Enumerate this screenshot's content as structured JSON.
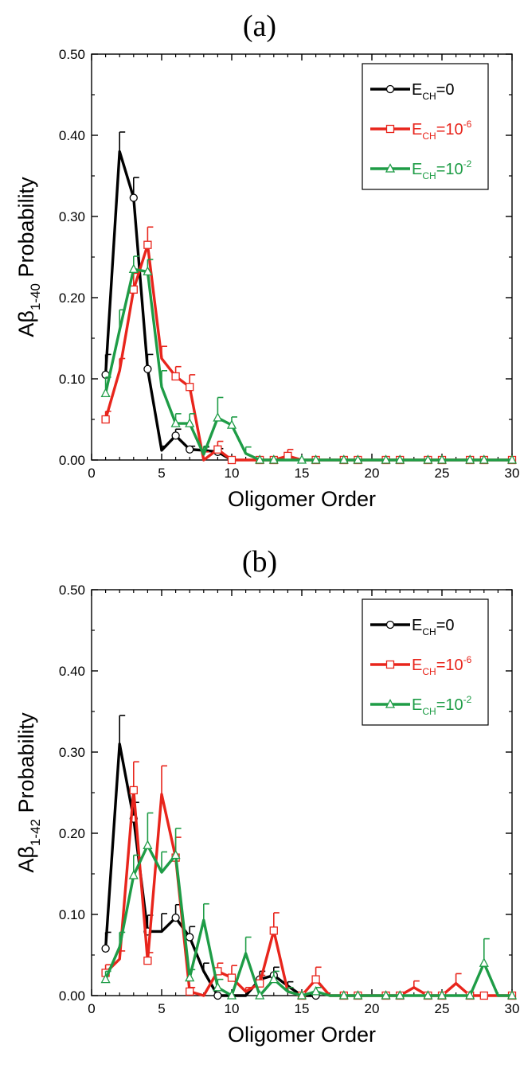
{
  "chart_data": [
    {
      "type": "line",
      "panel_label": "(a)",
      "xlabel": "Oligomer Order",
      "ylabel_main": "Aβ",
      "ylabel_sub": "1-40",
      "ylabel_tail": " Probability",
      "xlim": [
        0,
        30
      ],
      "ylim": [
        0,
        0.5
      ],
      "x_ticks": [
        0,
        5,
        10,
        15,
        20,
        25,
        30
      ],
      "y_ticks": [
        "0.00",
        "0.10",
        "0.20",
        "0.30",
        "0.40",
        "0.50"
      ],
      "legend_position": "top-right",
      "series": [
        {
          "name": "E_CH=0",
          "label_main": "E",
          "label_sub": "CH",
          "label_tail": "=0",
          "label_sup": "",
          "color": "#000000",
          "marker": "circle",
          "x": [
            1,
            2,
            3,
            4,
            5,
            6,
            7,
            8,
            9,
            10
          ],
          "y": [
            0.105,
            0.38,
            0.323,
            0.112,
            0.012,
            0.03,
            0.013,
            0.012,
            0.01,
            0.0
          ],
          "err": [
            0.025,
            0.024,
            0.025,
            0.018,
            0.005,
            0.008,
            0.004,
            0.004,
            0.004,
            0.0
          ],
          "markers_x": [
            1,
            3,
            4,
            6,
            7,
            9
          ]
        },
        {
          "name": "E_CH=10^-6",
          "label_main": "E",
          "label_sub": "CH",
          "label_tail": "=10",
          "label_sup": "-6",
          "color": "#e8251c",
          "marker": "square",
          "x": [
            1,
            2,
            3,
            4,
            5,
            6,
            7,
            8,
            9,
            10,
            11,
            12,
            13,
            14,
            15,
            16,
            17,
            18,
            19,
            20,
            21,
            22,
            23,
            24,
            25,
            26,
            27,
            28,
            29,
            30
          ],
          "y": [
            0.05,
            0.11,
            0.21,
            0.265,
            0.125,
            0.103,
            0.09,
            0.0,
            0.013,
            0.0,
            0.0,
            0.0,
            0.0,
            0.005,
            0.0,
            0.0,
            0.0,
            0.0,
            0.0,
            0.0,
            0.0,
            0.0,
            0.0,
            0.0,
            0.0,
            0.0,
            0.0,
            0.0,
            0.0,
            0.0
          ],
          "err": [
            0.01,
            0.015,
            0.02,
            0.022,
            0.015,
            0.012,
            0.015,
            0.01,
            0.01,
            0.0,
            0.0,
            0.0,
            0.0,
            0.008,
            0.0,
            0.0,
            0.0,
            0.0,
            0.0,
            0.0,
            0.0,
            0.0,
            0.0,
            0.0,
            0.0,
            0.0,
            0.0,
            0.0,
            0.0,
            0.0
          ],
          "markers_x": [
            1,
            3,
            4,
            6,
            7,
            9,
            10,
            12,
            13,
            14,
            16,
            18,
            19,
            21,
            22,
            24,
            25,
            27,
            28,
            30
          ]
        },
        {
          "name": "E_CH=10^-2",
          "label_main": "E",
          "label_sub": "CH",
          "label_tail": "=10",
          "label_sup": "-2",
          "color": "#1e9c46",
          "marker": "triangle",
          "x": [
            1,
            2,
            3,
            4,
            5,
            6,
            7,
            8,
            9,
            10,
            11,
            12,
            13,
            14,
            15,
            16,
            17,
            18,
            19,
            20,
            21,
            22,
            23,
            24,
            25,
            26,
            27,
            28,
            29,
            30
          ],
          "y": [
            0.082,
            0.16,
            0.235,
            0.232,
            0.09,
            0.045,
            0.045,
            0.007,
            0.052,
            0.043,
            0.008,
            0.0,
            0.0,
            0.0,
            0.0,
            0.0,
            0.0,
            0.0,
            0.0,
            0.0,
            0.0,
            0.0,
            0.0,
            0.0,
            0.0,
            0.0,
            0.0,
            0.0,
            0.0,
            0.0
          ],
          "err": [
            0.02,
            0.025,
            0.016,
            0.015,
            0.02,
            0.012,
            0.012,
            0.01,
            0.025,
            0.01,
            0.008,
            0.0,
            0.0,
            0.0,
            0.0,
            0.0,
            0.0,
            0.0,
            0.0,
            0.0,
            0.0,
            0.0,
            0.0,
            0.0,
            0.0,
            0.0,
            0.0,
            0.0,
            0.0,
            0.0
          ],
          "markers_x": [
            1,
            3,
            4,
            6,
            7,
            9,
            10,
            12,
            13,
            15,
            16,
            18,
            19,
            21,
            22,
            24,
            25,
            27,
            28,
            30
          ]
        }
      ]
    },
    {
      "type": "line",
      "panel_label": "(b)",
      "xlabel": "Oligomer Order",
      "ylabel_main": "Aβ",
      "ylabel_sub": "1-42",
      "ylabel_tail": " Probability",
      "xlim": [
        0,
        30
      ],
      "ylim": [
        0,
        0.5
      ],
      "x_ticks": [
        0,
        5,
        10,
        15,
        20,
        25,
        30
      ],
      "y_ticks": [
        "0.00",
        "0.10",
        "0.20",
        "0.30",
        "0.40",
        "0.50"
      ],
      "legend_position": "top-right",
      "series": [
        {
          "name": "E_CH=0",
          "label_main": "E",
          "label_sub": "CH",
          "label_tail": "=0",
          "label_sup": "",
          "color": "#000000",
          "marker": "circle",
          "x": [
            1,
            2,
            3,
            4,
            5,
            6,
            7,
            8,
            9,
            10,
            11,
            12,
            13,
            14,
            15,
            16
          ],
          "y": [
            0.058,
            0.31,
            0.218,
            0.079,
            0.079,
            0.096,
            0.072,
            0.03,
            0.0,
            0.0,
            0.0,
            0.02,
            0.025,
            0.012,
            0.0,
            0.0
          ],
          "err": [
            0.02,
            0.035,
            0.02,
            0.02,
            0.022,
            0.016,
            0.013,
            0.01,
            0.0,
            0.0,
            0.0,
            0.01,
            0.01,
            0.005,
            0.0,
            0.0
          ],
          "markers_x": [
            1,
            3,
            4,
            6,
            7,
            9,
            12,
            13,
            16
          ]
        },
        {
          "name": "E_CH=10^-6",
          "label_main": "E",
          "label_sub": "CH",
          "label_tail": "=10",
          "label_sup": "-6",
          "color": "#e8251c",
          "marker": "square",
          "x": [
            1,
            2,
            3,
            4,
            5,
            6,
            7,
            8,
            9,
            10,
            11,
            12,
            13,
            14,
            15,
            16,
            17,
            18,
            19,
            20,
            21,
            22,
            23,
            24,
            25,
            26,
            27,
            28,
            29,
            30
          ],
          "y": [
            0.028,
            0.045,
            0.253,
            0.043,
            0.248,
            0.17,
            0.005,
            0.0,
            0.03,
            0.022,
            0.005,
            0.015,
            0.08,
            0.005,
            0.0,
            0.02,
            0.0,
            0.0,
            0.0,
            0.0,
            0.0,
            0.0,
            0.01,
            0.0,
            0.0,
            0.015,
            0.0,
            0.0,
            0.0,
            0.0
          ],
          "err": [
            0.01,
            0.01,
            0.035,
            0.01,
            0.035,
            0.025,
            0.005,
            0.0,
            0.01,
            0.015,
            0.005,
            0.01,
            0.022,
            0.005,
            0.0,
            0.015,
            0.0,
            0.0,
            0.0,
            0.0,
            0.0,
            0.0,
            0.008,
            0.0,
            0.0,
            0.012,
            0.0,
            0.0,
            0.0,
            0.0
          ],
          "markers_x": [
            1,
            3,
            4,
            6,
            7,
            9,
            10,
            12,
            13,
            15,
            16,
            18,
            19,
            21,
            22,
            24,
            25,
            27,
            28,
            30
          ]
        },
        {
          "name": "E_CH=10^-2",
          "label_main": "E",
          "label_sub": "CH",
          "label_tail": "=10",
          "label_sup": "-2",
          "color": "#1e9c46",
          "marker": "triangle",
          "x": [
            1,
            2,
            3,
            4,
            5,
            6,
            7,
            8,
            9,
            10,
            11,
            12,
            13,
            14,
            15,
            16,
            17,
            18,
            19,
            20,
            21,
            22,
            23,
            24,
            25,
            26,
            27,
            28,
            29,
            30
          ],
          "y": [
            0.02,
            0.06,
            0.148,
            0.185,
            0.152,
            0.173,
            0.022,
            0.093,
            0.01,
            0.0,
            0.052,
            0.0,
            0.02,
            0.005,
            0.0,
            0.005,
            0.0,
            0.0,
            0.0,
            0.0,
            0.0,
            0.0,
            0.0,
            0.0,
            0.0,
            0.0,
            0.0,
            0.04,
            0.0,
            0.0
          ],
          "err": [
            0.01,
            0.018,
            0.025,
            0.04,
            0.025,
            0.033,
            0.01,
            0.02,
            0.01,
            0.0,
            0.02,
            0.0,
            0.01,
            0.005,
            0.0,
            0.005,
            0.0,
            0.0,
            0.0,
            0.0,
            0.0,
            0.0,
            0.0,
            0.0,
            0.0,
            0.0,
            0.0,
            0.03,
            0.0,
            0.0
          ],
          "markers_x": [
            1,
            3,
            4,
            6,
            7,
            9,
            10,
            12,
            13,
            15,
            16,
            18,
            19,
            21,
            22,
            24,
            25,
            27,
            28,
            30
          ]
        }
      ]
    }
  ]
}
